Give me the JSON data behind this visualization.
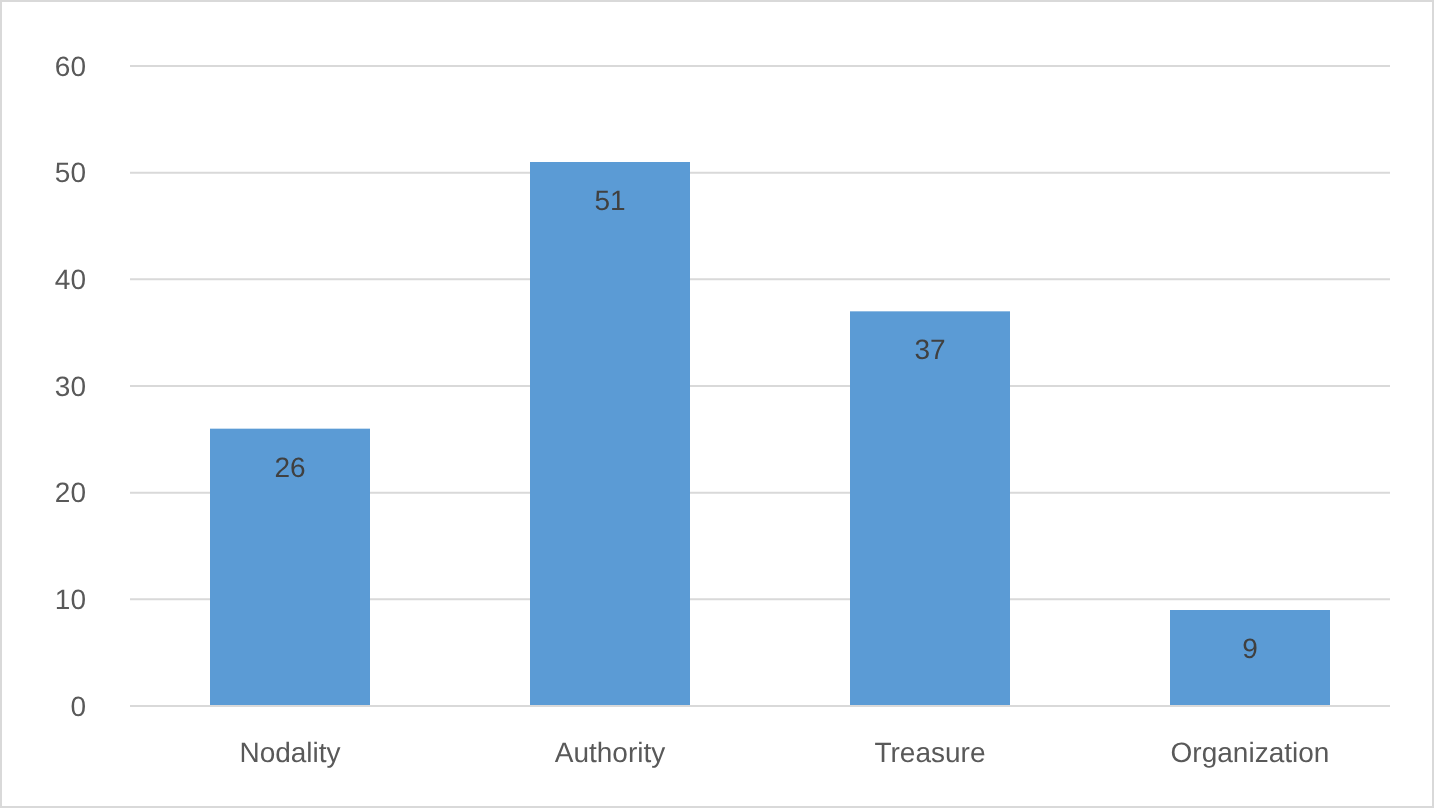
{
  "chart_data": {
    "type": "bar",
    "categories": [
      "Nodality",
      "Authority",
      "Treasure",
      "Organization"
    ],
    "values": [
      26,
      51,
      37,
      9
    ],
    "color": "#5b9bd5",
    "ylim": [
      0,
      60
    ],
    "yticks": [
      0,
      10,
      20,
      30,
      40,
      50,
      60
    ],
    "grid": "y",
    "data_labels": true
  }
}
